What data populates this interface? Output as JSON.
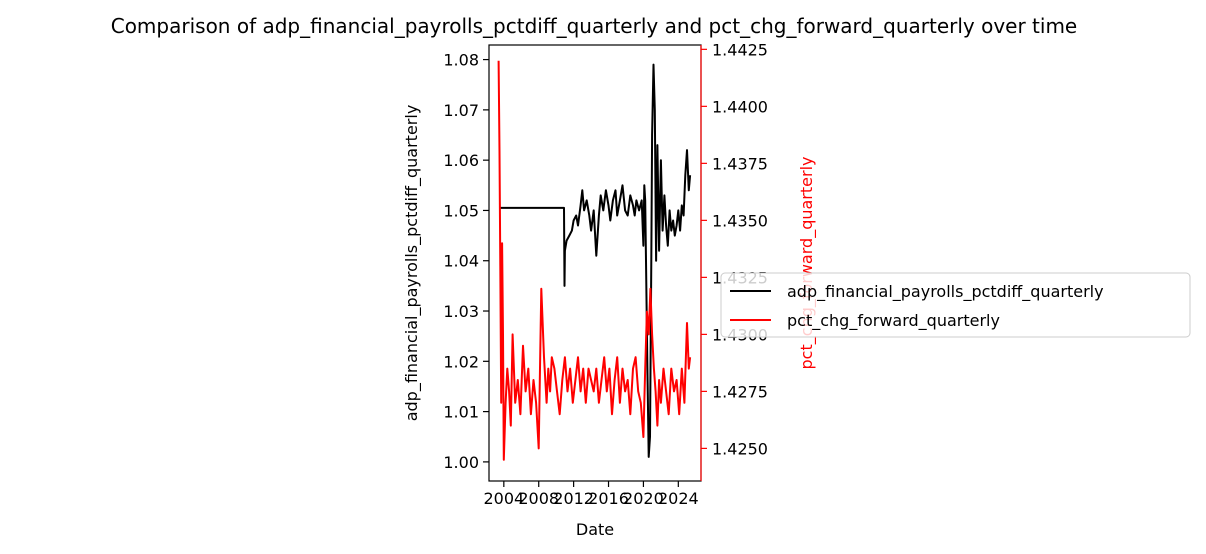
{
  "chart_data": {
    "type": "line",
    "title": "Comparison of adp_financial_payrolls_pctdiff_quarterly and pct_chg_forward_quarterly over time",
    "xlabel": "Date",
    "ylabel_left": "adp_financial_payrolls_pctdiff_quarterly",
    "ylabel_right": "pct_chg_forward_quarterly",
    "xlim": [
      2002.3,
      2026.6
    ],
    "ylim_left": [
      0.9962,
      1.0829
    ],
    "ylim_right": [
      1.42357,
      1.44269
    ],
    "x_ticks": [
      "2004",
      "2008",
      "2012",
      "2016",
      "2020",
      "2024"
    ],
    "y_ticks_left": [
      "1.00",
      "1.01",
      "1.02",
      "1.03",
      "1.04",
      "1.05",
      "1.06",
      "1.07",
      "1.08"
    ],
    "y_ticks_right": [
      "1.4250",
      "1.4275",
      "1.4300",
      "1.4325",
      "1.4350",
      "1.4375",
      "1.4400",
      "1.4425"
    ],
    "legend_position": "center-right (outside)",
    "colors": {
      "left_series": "#000000",
      "right_series": "#ff0000"
    },
    "series": [
      {
        "name": "adp_financial_payrolls_pctdiff_quarterly",
        "axis": "left",
        "color": "#000000",
        "x": [
          2003.5,
          2004.0,
          2006.0,
          2008.0,
          2010.0,
          2010.9,
          2010.95,
          2011.0,
          2011.2,
          2011.5,
          2011.8,
          2012.0,
          2012.3,
          2012.5,
          2012.8,
          2013.0,
          2013.2,
          2013.5,
          2013.8,
          2014.0,
          2014.3,
          2014.6,
          2014.9,
          2015.1,
          2015.4,
          2015.7,
          2016.0,
          2016.2,
          2016.5,
          2016.8,
          2017.0,
          2017.3,
          2017.6,
          2017.9,
          2018.2,
          2018.5,
          2018.8,
          2019.0,
          2019.2,
          2019.5,
          2019.8,
          2020.0,
          2020.1,
          2020.2,
          2020.3,
          2020.45,
          2020.6,
          2020.75,
          2020.9,
          2021.0,
          2021.15,
          2021.3,
          2021.45,
          2021.6,
          2021.8,
          2022.0,
          2022.2,
          2022.4,
          2022.6,
          2022.8,
          2023.0,
          2023.2,
          2023.4,
          2023.6,
          2023.8,
          2024.0,
          2024.2,
          2024.4,
          2024.6,
          2024.8,
          2025.0,
          2025.2,
          2025.35
        ],
        "y": [
          1.0505,
          1.0505,
          1.0505,
          1.0505,
          1.0505,
          1.0505,
          1.035,
          1.042,
          1.044,
          1.045,
          1.046,
          1.048,
          1.049,
          1.047,
          1.051,
          1.054,
          1.05,
          1.052,
          1.049,
          1.046,
          1.05,
          1.041,
          1.049,
          1.053,
          1.05,
          1.054,
          1.051,
          1.048,
          1.052,
          1.054,
          1.049,
          1.052,
          1.055,
          1.05,
          1.049,
          1.053,
          1.051,
          1.049,
          1.052,
          1.05,
          1.052,
          1.043,
          1.055,
          1.052,
          1.04,
          1.02,
          1.001,
          1.005,
          1.04,
          1.065,
          1.079,
          1.07,
          1.04,
          1.063,
          1.042,
          1.06,
          1.046,
          1.053,
          1.047,
          1.043,
          1.05,
          1.046,
          1.048,
          1.045,
          1.047,
          1.05,
          1.046,
          1.051,
          1.049,
          1.057,
          1.062,
          1.054,
          1.057
        ]
      },
      {
        "name": "pct_chg_forward_quarterly",
        "axis": "right",
        "color": "#ff0000",
        "x": [
          2003.4,
          2003.5,
          2003.6,
          2003.7,
          2003.8,
          2003.9,
          2004.0,
          2004.2,
          2004.4,
          2004.6,
          2004.8,
          2005.0,
          2005.3,
          2005.6,
          2005.9,
          2006.2,
          2006.5,
          2006.8,
          2007.1,
          2007.4,
          2007.7,
          2008.0,
          2008.3,
          2008.6,
          2008.9,
          2009.1,
          2009.3,
          2009.5,
          2009.8,
          2010.1,
          2010.4,
          2010.7,
          2011.0,
          2011.3,
          2011.6,
          2011.9,
          2012.2,
          2012.5,
          2012.8,
          2013.1,
          2013.4,
          2013.7,
          2014.0,
          2014.3,
          2014.6,
          2014.9,
          2015.2,
          2015.5,
          2015.8,
          2016.1,
          2016.4,
          2016.7,
          2017.0,
          2017.3,
          2017.6,
          2017.9,
          2018.2,
          2018.5,
          2018.8,
          2019.1,
          2019.4,
          2019.7,
          2020.0,
          2020.2,
          2020.4,
          2020.6,
          2020.8,
          2021.0,
          2021.2,
          2021.4,
          2021.6,
          2021.8,
          2022.0,
          2022.3,
          2022.6,
          2022.9,
          2023.2,
          2023.5,
          2023.8,
          2024.1,
          2024.4,
          2024.7,
          2025.0,
          2025.2,
          2025.35
        ],
        "y": [
          1.442,
          1.438,
          1.433,
          1.427,
          1.434,
          1.43,
          1.4245,
          1.427,
          1.4285,
          1.4275,
          1.426,
          1.43,
          1.427,
          1.428,
          1.4265,
          1.4295,
          1.4275,
          1.4285,
          1.4265,
          1.428,
          1.427,
          1.425,
          1.432,
          1.429,
          1.427,
          1.4285,
          1.4275,
          1.429,
          1.4285,
          1.4275,
          1.4265,
          1.428,
          1.429,
          1.4275,
          1.4285,
          1.427,
          1.428,
          1.429,
          1.4275,
          1.4285,
          1.427,
          1.4285,
          1.428,
          1.4275,
          1.4285,
          1.427,
          1.428,
          1.429,
          1.4275,
          1.4285,
          1.4265,
          1.428,
          1.429,
          1.427,
          1.4285,
          1.4275,
          1.428,
          1.4265,
          1.4285,
          1.429,
          1.4275,
          1.427,
          1.4255,
          1.4285,
          1.431,
          1.43,
          1.432,
          1.43,
          1.4285,
          1.4275,
          1.426,
          1.428,
          1.427,
          1.4285,
          1.4275,
          1.4265,
          1.4285,
          1.4275,
          1.428,
          1.4265,
          1.4285,
          1.427,
          1.4305,
          1.4285,
          1.429
        ]
      }
    ]
  }
}
